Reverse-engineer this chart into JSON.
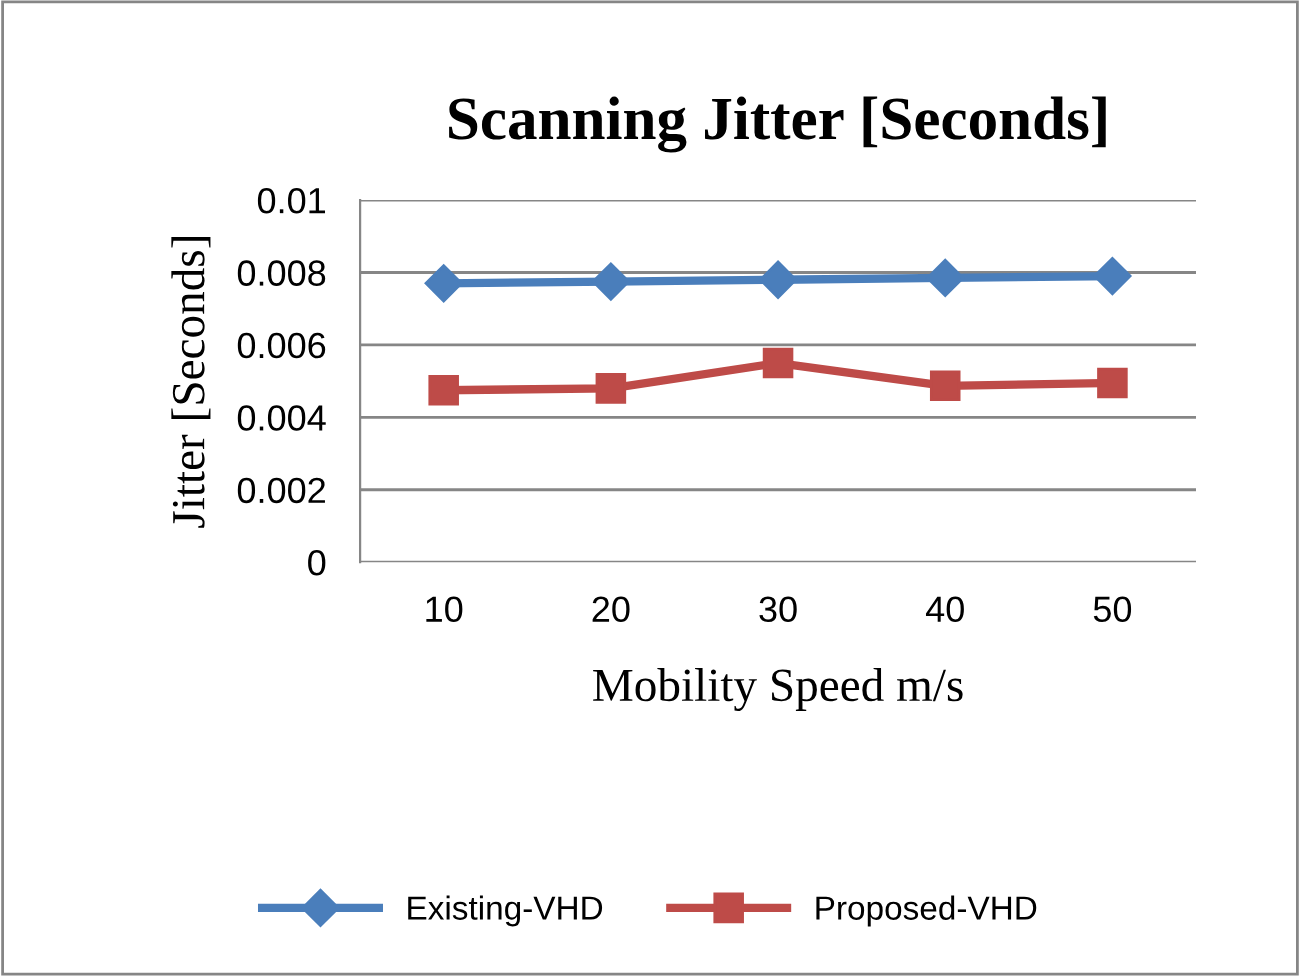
{
  "chart_data": {
    "type": "line",
    "title": "Scanning Jitter [Seconds]",
    "xlabel": "Mobility Speed m/s",
    "ylabel": "Jitter [Seconds]",
    "categories": [
      "10",
      "20",
      "30",
      "40",
      "50"
    ],
    "series": [
      {
        "name": "Existing-VHD",
        "color": "#4a7ebb",
        "marker": "diamond",
        "values": [
          0.0077,
          0.00775,
          0.0078,
          0.00785,
          0.0079
        ]
      },
      {
        "name": "Proposed-VHD",
        "color": "#be4b48",
        "marker": "square",
        "values": [
          0.00475,
          0.0048,
          0.0055,
          0.00487,
          0.00495
        ]
      }
    ],
    "ylim": [
      0,
      0.01
    ],
    "yticks": [
      {
        "value": 0,
        "label": "0"
      },
      0.002,
      0.004,
      0.006,
      0.008,
      0.01
    ],
    "grid": "y",
    "legend": "bottom",
    "line_style": "solid"
  }
}
